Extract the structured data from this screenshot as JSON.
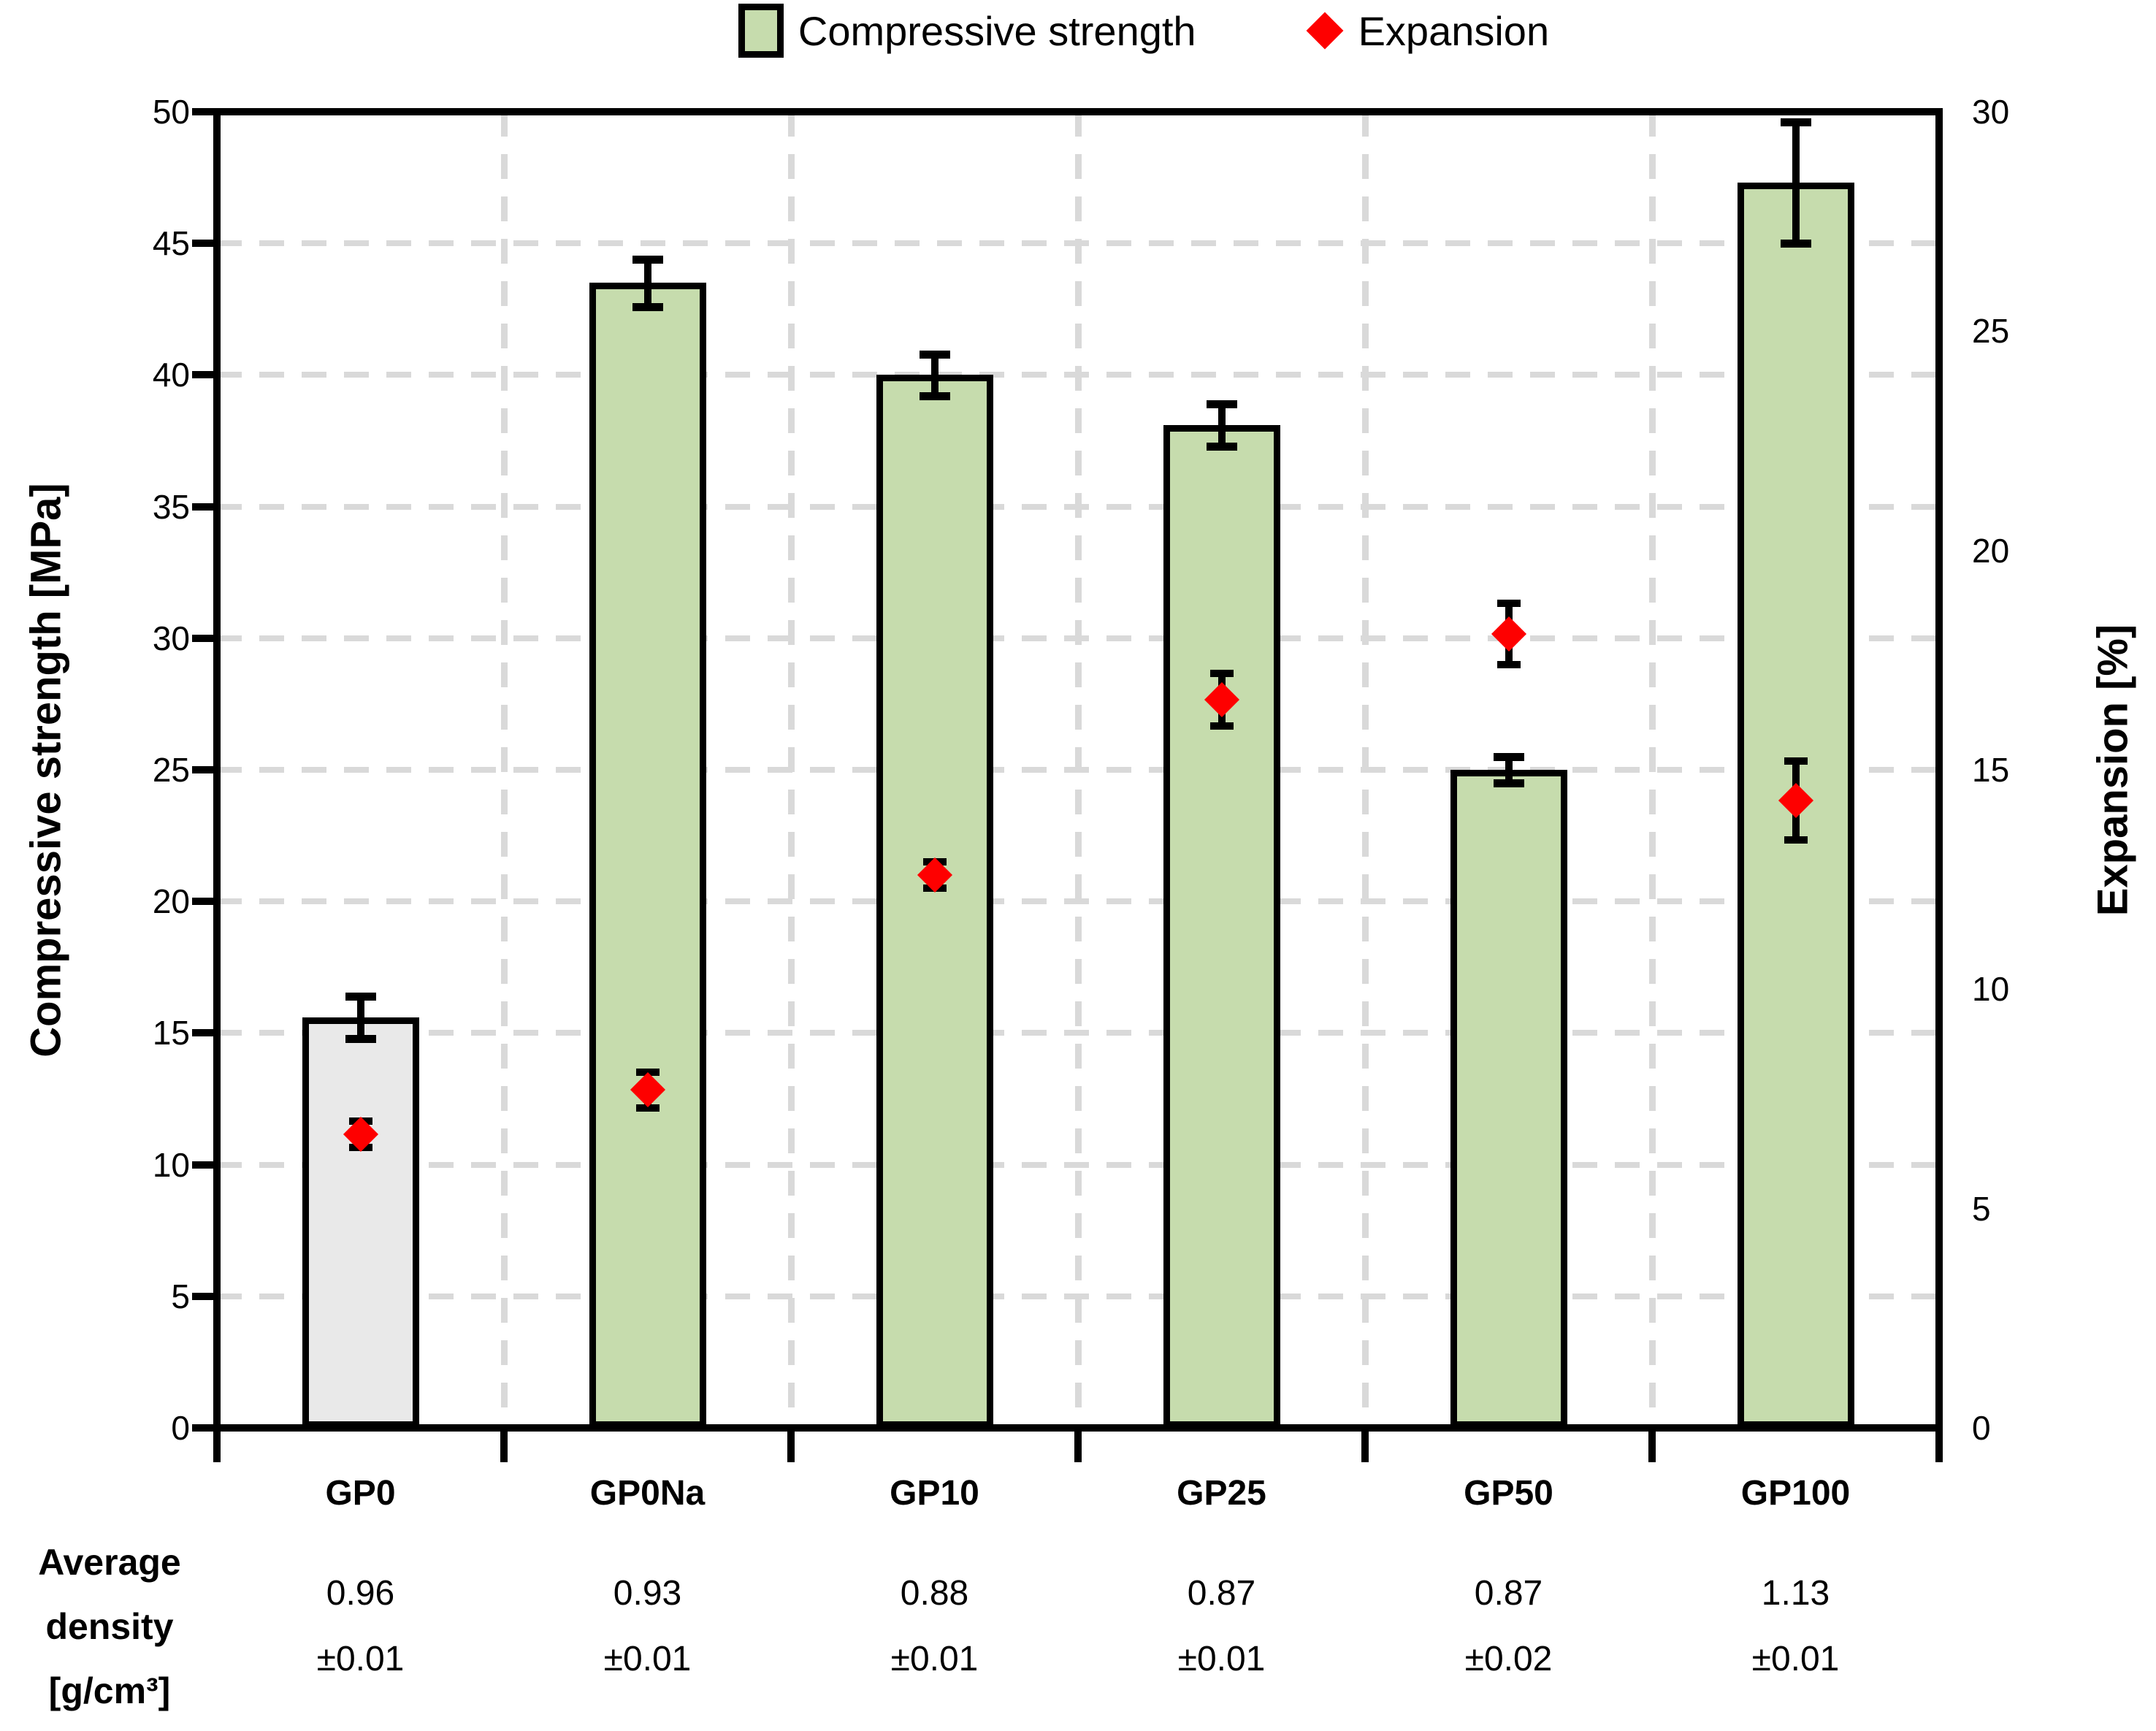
{
  "chart_data": {
    "type": "bar",
    "categories": [
      "GP0",
      "GP0Na",
      "GP10",
      "GP25",
      "GP50",
      "GP100"
    ],
    "series": [
      {
        "name": "Compressive strength",
        "axis": "left",
        "plot_as": "bar",
        "values": [
          15.6,
          43.5,
          40.0,
          38.1,
          25.0,
          47.3
        ],
        "errors": [
          0.8,
          0.9,
          0.8,
          0.8,
          0.5,
          2.3
        ],
        "bar_colors": [
          "#e9e9e9",
          "#c6dcad",
          "#c6dcad",
          "#c6dcad",
          "#c6dcad",
          "#c6dcad"
        ]
      },
      {
        "name": "Expansion",
        "axis": "right",
        "plot_as": "scatter",
        "marker": "diamond",
        "color": "#fe0000",
        "values": [
          6.7,
          7.7,
          12.6,
          16.6,
          18.1,
          14.3
        ],
        "errors": [
          0.3,
          0.4,
          0.3,
          0.6,
          0.7,
          0.9
        ]
      }
    ],
    "ylabel_left": "Compressive strength [MPa]",
    "ylabel_right": "Expansion [%]",
    "y_left": {
      "min": 0,
      "max": 50,
      "step": 5
    },
    "y_right": {
      "min": 0,
      "max": 30,
      "step": 5
    },
    "grid": "dashed",
    "legend_position": "top"
  },
  "legend": {
    "items": [
      {
        "label": "Compressive strength",
        "swatch": "green-square"
      },
      {
        "label": "Expansion",
        "swatch": "red-diamond"
      }
    ]
  },
  "density_row": {
    "header_lines": [
      "Average",
      "density",
      "[g/cm³]"
    ],
    "values": [
      "0.96",
      "0.93",
      "0.88",
      "0.87",
      "0.87",
      "1.13"
    ],
    "errors": [
      "±0.01",
      "±0.01",
      "±0.01",
      "±0.01",
      "±0.02",
      "±0.01"
    ]
  },
  "colors": {
    "bar_green": "#c6dcad",
    "bar_gray": "#e9e9e9",
    "marker_red": "#fe0000",
    "gridline": "#d9d9d9",
    "axis": "#000000"
  }
}
